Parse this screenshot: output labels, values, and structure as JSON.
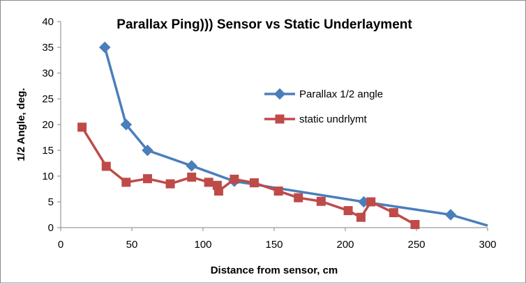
{
  "chart_data": {
    "type": "scatter",
    "title": "Parallax  Ping))) Sensor  vs Static Underlayment",
    "xlabel": "Distance from sensor, cm",
    "ylabel": "1/2 Angle, deg.",
    "xlim": [
      0,
      300
    ],
    "ylim": [
      0,
      40
    ],
    "xticks": [
      "0",
      "50",
      "100",
      "150",
      "200",
      "250",
      "300"
    ],
    "yticks": [
      "0",
      "5",
      "10",
      "15",
      "20",
      "25",
      "30",
      "35",
      "40"
    ],
    "grid": false,
    "legend": "right",
    "series": [
      {
        "name": "Parallax 1/2 angle",
        "color": "#4a7ebb",
        "marker": "diamond",
        "x": [
          31,
          46,
          61,
          92,
          122,
          213,
          274
        ],
        "y": [
          35,
          20,
          15,
          12,
          9,
          5,
          2.5
        ],
        "line_extends_to": {
          "x": 300,
          "y": 0.4
        }
      },
      {
        "name": "static undrlymt",
        "color": "#be4b48",
        "marker": "square",
        "x": [
          15,
          32,
          46,
          61,
          77,
          92,
          104,
          110,
          111,
          122,
          136,
          153,
          167,
          183,
          202,
          211,
          218,
          234,
          249
        ],
        "y": [
          19.5,
          11.9,
          8.8,
          9.5,
          8.5,
          9.8,
          8.8,
          8.2,
          7.1,
          9.4,
          8.7,
          7.1,
          5.8,
          5.1,
          3.3,
          2.0,
          5.0,
          2.9,
          0.6
        ]
      }
    ]
  }
}
